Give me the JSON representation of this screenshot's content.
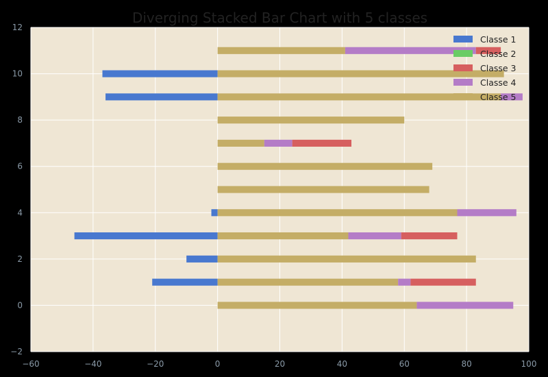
{
  "chart_data": {
    "type": "bar",
    "orientation": "horizontal",
    "stacked": true,
    "diverging": true,
    "title": "Diverging Stacked Bar Chart with 5 classes",
    "xlabel": "",
    "ylabel": "",
    "xlim": [
      -60,
      100
    ],
    "ylim": [
      -2,
      12
    ],
    "xticks": [
      -60,
      -40,
      -20,
      0,
      20,
      40,
      60,
      80,
      100
    ],
    "yticks": [
      -2,
      0,
      2,
      4,
      6,
      8,
      10,
      12
    ],
    "grid": true,
    "legend_position": "upper-right",
    "y": [
      0,
      1,
      2,
      3,
      4,
      5,
      6,
      7,
      8,
      9,
      10,
      11
    ],
    "series": [
      {
        "name": "Classe 1",
        "color": "#4878cf",
        "side": "negative",
        "values": [
          0,
          -21,
          -10,
          -46,
          -2,
          0,
          0,
          0,
          0,
          -36,
          -37,
          0
        ]
      },
      {
        "name": "Classe 2",
        "color": "#6acc65",
        "side": "positive",
        "values": [
          0,
          0,
          0,
          0,
          0,
          0,
          0,
          0,
          0,
          0,
          0,
          0
        ]
      },
      {
        "name": "Classe 3",
        "color": "#d65f5f",
        "side": "positive",
        "values": [
          0,
          21,
          0,
          18,
          0,
          0,
          0,
          19,
          0,
          0,
          0,
          8
        ]
      },
      {
        "name": "Classe 4",
        "color": "#b47cc7",
        "side": "positive",
        "values": [
          31,
          4,
          0,
          17,
          19,
          0,
          0,
          9,
          0,
          7,
          0,
          42
        ]
      },
      {
        "name": "Classe 5",
        "color": "#c4ad66",
        "side": "positive",
        "values": [
          64,
          58,
          83,
          42,
          77,
          68,
          69,
          15,
          60,
          91,
          92,
          41
        ]
      }
    ],
    "stack_order_positive": [
      "Classe 5",
      "Classe 4",
      "Classe 3",
      "Classe 2"
    ]
  },
  "colors": {
    "page_background": "#000000",
    "plot_background": "#efe6d4",
    "grid": "#ffffff",
    "tick_text": "#8a9aa8",
    "title_text": "#222222"
  }
}
